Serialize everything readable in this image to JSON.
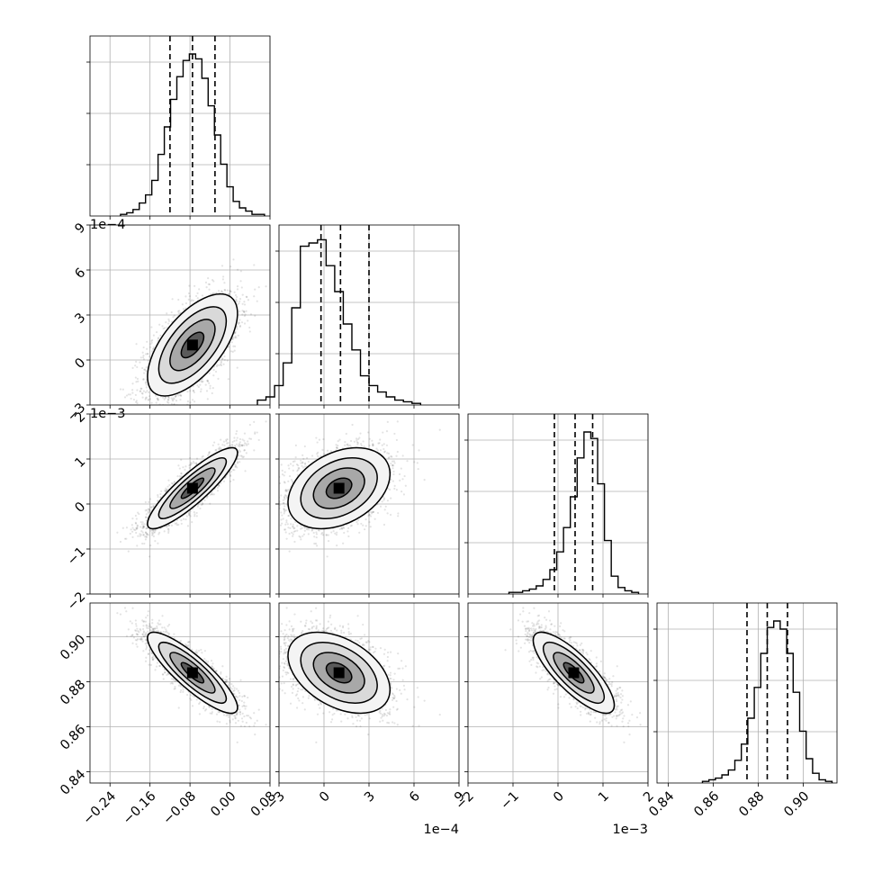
{
  "chart_data": {
    "type": "corner",
    "parameters": [
      {
        "index": 0,
        "range": [
          -0.28,
          0.08
        ],
        "ticks": [
          -0.24,
          -0.16,
          -0.08,
          0.0,
          0.08
        ],
        "tick_labels": [
          "−0.24",
          "−0.16",
          "−0.08",
          "0.00",
          "0.08"
        ],
        "offset_label": "",
        "center": -0.075,
        "sd": 0.045,
        "quantiles": [
          -0.12,
          -0.075,
          -0.03
        ],
        "histogram": [
          0.01,
          0.02,
          0.04,
          0.08,
          0.13,
          0.22,
          0.38,
          0.55,
          0.72,
          0.86,
          0.96,
          1.0,
          0.97,
          0.85,
          0.68,
          0.5,
          0.32,
          0.18,
          0.09,
          0.05,
          0.03,
          0.01,
          0.01
        ]
      },
      {
        "index": 1,
        "range": [
          -3,
          9
        ],
        "ticks": [
          -3,
          0,
          3,
          6,
          9
        ],
        "tick_labels": [
          "−3",
          "0",
          "3",
          "6",
          "9"
        ],
        "offset_label": "1e−4",
        "center": 1.0,
        "sd": 1.7,
        "quantiles": [
          -0.2,
          1.1,
          3.0
        ],
        "histogram": [
          0.03,
          0.05,
          0.12,
          0.26,
          0.6,
          0.98,
          1.0,
          1.02,
          0.86,
          0.7,
          0.5,
          0.34,
          0.18,
          0.12,
          0.08,
          0.05,
          0.03,
          0.02,
          0.01
        ]
      },
      {
        "index": 2,
        "range": [
          -2,
          2
        ],
        "ticks": [
          -2,
          -1,
          0,
          1,
          2
        ],
        "tick_labels": [
          "−2",
          "−1",
          "0",
          "1",
          "2"
        ],
        "offset_label": "1e−3",
        "center": 0.35,
        "sd": 0.45,
        "quantiles": [
          -0.08,
          0.38,
          0.77
        ],
        "histogram": [
          0.01,
          0.01,
          0.02,
          0.03,
          0.05,
          0.09,
          0.15,
          0.26,
          0.41,
          0.6,
          0.84,
          1.0,
          0.96,
          0.68,
          0.33,
          0.11,
          0.04,
          0.02,
          0.01
        ]
      },
      {
        "index": 3,
        "range": [
          0.835,
          0.915
        ],
        "ticks": [
          0.84,
          0.86,
          0.88,
          0.9
        ],
        "tick_labels": [
          "0.84",
          "0.86",
          "0.88",
          "0.90"
        ],
        "offset_label": "",
        "center": 0.884,
        "sd": 0.009,
        "quantiles": [
          0.875,
          0.884,
          0.893
        ],
        "histogram": [
          0.01,
          0.02,
          0.03,
          0.05,
          0.08,
          0.14,
          0.24,
          0.4,
          0.59,
          0.8,
          0.96,
          1.0,
          0.95,
          0.8,
          0.56,
          0.32,
          0.15,
          0.06,
          0.02,
          0.01
        ]
      }
    ],
    "correlations": [
      [
        1.0,
        0.62,
        0.88,
        -0.86
      ],
      [
        0.62,
        1.0,
        0.35,
        -0.42
      ],
      [
        0.88,
        0.35,
        1.0,
        -0.8
      ],
      [
        -0.86,
        -0.42,
        -0.8,
        1.0
      ]
    ],
    "diagonal_type": "histogram",
    "off_diagonal_type": "density contours with scatter",
    "quantile_lines": "dashed",
    "grid": true
  }
}
